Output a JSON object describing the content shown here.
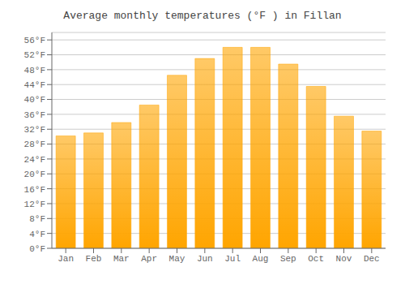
{
  "chart_data": {
    "type": "bar",
    "title": "Average monthly temperatures (°F ) in Fillan",
    "categories": [
      "Jan",
      "Feb",
      "Mar",
      "Apr",
      "May",
      "Jun",
      "Jul",
      "Aug",
      "Sep",
      "Oct",
      "Nov",
      "Dec"
    ],
    "values": [
      30.2,
      31.0,
      33.8,
      38.5,
      46.5,
      51.0,
      54.0,
      54.0,
      49.5,
      43.5,
      35.5,
      31.5
    ],
    "color": "#FFA500",
    "ylim": [
      0,
      58
    ],
    "yticks": [
      {
        "value": 0,
        "label": "0°F"
      },
      {
        "value": 4,
        "label": "4°F"
      },
      {
        "value": 8,
        "label": "8°F"
      },
      {
        "value": 12,
        "label": "12°F"
      },
      {
        "value": 16,
        "label": "16°F"
      },
      {
        "value": 20,
        "label": "20°F"
      },
      {
        "value": 24,
        "label": "24°F"
      },
      {
        "value": 28,
        "label": "28°F"
      },
      {
        "value": 32,
        "label": "32°F"
      },
      {
        "value": 36,
        "label": "36°F"
      },
      {
        "value": 40,
        "label": "40°F"
      },
      {
        "value": 44,
        "label": "44°F"
      },
      {
        "value": 48,
        "label": "48°F"
      },
      {
        "value": 52,
        "label": "52°F"
      },
      {
        "value": 56,
        "label": "56°F"
      }
    ],
    "grid": true
  }
}
